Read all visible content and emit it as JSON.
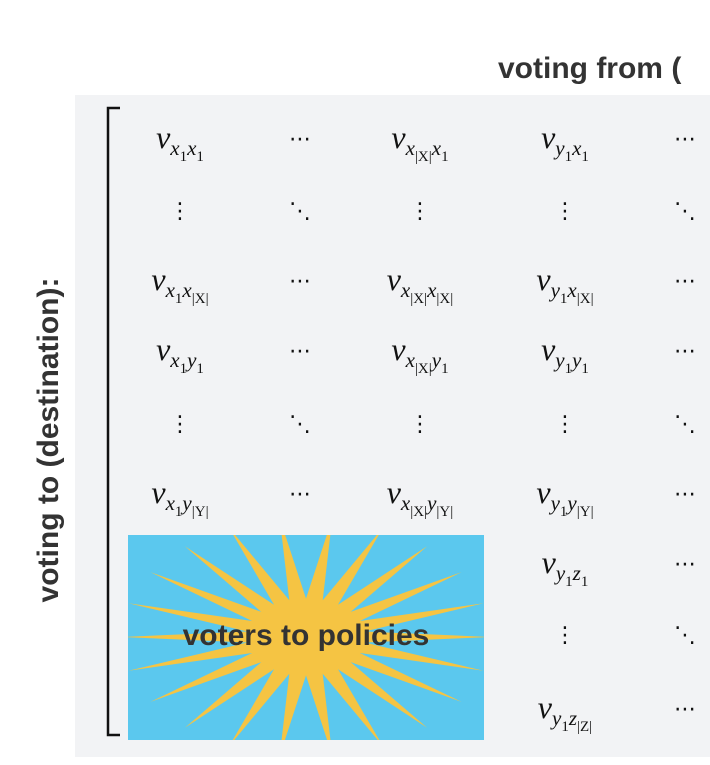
{
  "header": {
    "title": "voting from (",
    "side_label": "voting to (destination):"
  },
  "box": {
    "label": "voters to policies"
  },
  "matrix": {
    "rows": [
      [
        {
          "base": "v",
          "sub": [
            [
              "x",
              "1"
            ],
            [
              "x",
              "1"
            ]
          ]
        },
        "⋯",
        {
          "base": "v",
          "sub": [
            [
              "x",
              "|X|"
            ],
            [
              "x",
              "1"
            ]
          ]
        },
        {
          "base": "v",
          "sub": [
            [
              "y",
              "1"
            ],
            [
              "x",
              "1"
            ]
          ]
        },
        "⋯"
      ],
      [
        "⋮",
        "⋱",
        "⋮",
        "⋮",
        "⋱"
      ],
      [
        {
          "base": "v",
          "sub": [
            [
              "x",
              "1"
            ],
            [
              "x",
              "|X|"
            ]
          ]
        },
        "⋯",
        {
          "base": "v",
          "sub": [
            [
              "x",
              "|X|"
            ],
            [
              "x",
              "|X|"
            ]
          ]
        },
        {
          "base": "v",
          "sub": [
            [
              "y",
              "1"
            ],
            [
              "x",
              "|X|"
            ]
          ]
        },
        "⋯"
      ],
      [
        {
          "base": "v",
          "sub": [
            [
              "x",
              "1"
            ],
            [
              "y",
              "1"
            ]
          ]
        },
        "⋯",
        {
          "base": "v",
          "sub": [
            [
              "x",
              "|X|"
            ],
            [
              "y",
              "1"
            ]
          ]
        },
        {
          "base": "v",
          "sub": [
            [
              "y",
              "1"
            ],
            [
              "y",
              "1"
            ]
          ]
        },
        "⋯"
      ],
      [
        "⋮",
        "⋱",
        "⋮",
        "⋮",
        "⋱"
      ],
      [
        {
          "base": "v",
          "sub": [
            [
              "x",
              "1"
            ],
            [
              "y",
              "|Y|"
            ]
          ]
        },
        "⋯",
        {
          "base": "v",
          "sub": [
            [
              "x",
              "|X|"
            ],
            [
              "y",
              "|Y|"
            ]
          ]
        },
        {
          "base": "v",
          "sub": [
            [
              "y",
              "1"
            ],
            [
              "y",
              "|Y|"
            ]
          ]
        },
        "⋯"
      ],
      [
        null,
        null,
        null,
        {
          "base": "v",
          "sub": [
            [
              "y",
              "1"
            ],
            [
              "z",
              "1"
            ]
          ]
        },
        "⋯"
      ],
      [
        null,
        null,
        null,
        "⋮",
        "⋱"
      ],
      [
        null,
        null,
        null,
        {
          "base": "v",
          "sub": [
            [
              "y",
              "1"
            ],
            [
              "z",
              "|Z|"
            ]
          ]
        },
        "⋯"
      ]
    ]
  }
}
